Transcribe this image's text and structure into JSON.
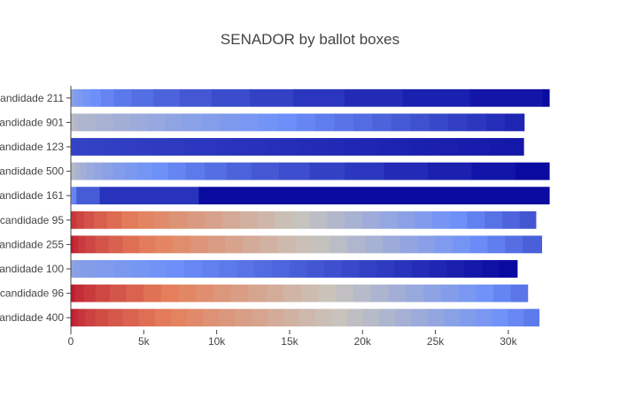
{
  "chart_data": {
    "type": "bar",
    "orientation": "horizontal",
    "stacked": true,
    "title": "SENADOR by ballot boxes",
    "xlabel": "",
    "ylabel": "",
    "xlim": [
      0,
      32800
    ],
    "x_ticks": [
      0,
      5000,
      10000,
      15000,
      20000,
      25000,
      30000
    ],
    "x_tick_labels": [
      "0",
      "5k",
      "10k",
      "15k",
      "20k",
      "25k",
      "30k"
    ],
    "grid": false,
    "legend": "none",
    "colorscale": "coolwarm",
    "color_low": "#b40426",
    "color_mid": "#c9c4bc",
    "color_high": "#0a0aa0",
    "categories": [
      "candidade 211",
      "candidade 901",
      "candidade 123",
      "candidade 500",
      "candidade 161",
      "candidade 95",
      "candidade 255",
      "candidade 100",
      "candidade 96",
      "candidade 400"
    ],
    "bars": [
      {
        "category": "candidade 211",
        "segment_values": [
          60,
          140,
          260,
          380,
          520,
          700,
          900,
          1200,
          1500,
          1800,
          2200,
          2600,
          3000,
          3500,
          4000,
          4600,
          5000,
          2800
        ],
        "shade_start": 0.3,
        "shade_end": 1.0
      },
      {
        "category": "candidade 901",
        "segment_values": [
          60,
          120,
          300,
          1200,
          1200,
          1200,
          1200,
          1200,
          1200,
          1300,
          1300,
          1300,
          1300,
          1300,
          1300,
          1300,
          1300,
          1300,
          1300,
          1300,
          1300,
          1300,
          1300,
          1300,
          1300,
          1300,
          1300
        ],
        "shade_start": 0.05,
        "shade_end": 0.9
      },
      {
        "category": "candidade 123",
        "segment_values": [
          80,
          160,
          1000,
          1100,
          1100,
          1100,
          1100,
          1100,
          1100,
          1100,
          1100,
          1100,
          1100,
          1100,
          1100,
          1100,
          1100,
          1100,
          1100,
          1100,
          1100,
          1100,
          1100,
          1100,
          1100,
          1100,
          1100,
          1100,
          1100,
          1200
        ],
        "shade_start": 0.78,
        "shade_end": 0.95
      },
      {
        "category": "candidade 500",
        "segment_values": [
          60,
          120,
          200,
          300,
          400,
          500,
          600,
          700,
          800,
          900,
          1000,
          1100,
          1200,
          1300,
          1500,
          1700,
          1900,
          2100,
          2400,
          2700,
          3000,
          3000,
          3000,
          4500
        ],
        "shade_start": 0.05,
        "shade_end": 1.0
      },
      {
        "category": "candidade 161",
        "segment_values": [
          80,
          300,
          1600,
          6800,
          24020
        ],
        "shade_start": 0.4,
        "shade_end": 1.0
      },
      {
        "category": "candidade 95",
        "segment_values": [
          80,
          300,
          500,
          700,
          900,
          1000,
          1100,
          1100,
          1100,
          1200,
          1200,
          1200,
          1200,
          1200,
          1200,
          1200,
          1200,
          1200,
          1200,
          1200,
          1200,
          1200,
          1200,
          1200,
          1200,
          1200,
          1200,
          1200,
          1200,
          1100
        ],
        "shade_start": -0.85,
        "shade_end": 0.72
      },
      {
        "category": "candidade 255",
        "segment_values": [
          60,
          120,
          300,
          500,
          700,
          900,
          1000,
          1100,
          1100,
          1200,
          1200,
          1200,
          1200,
          1200,
          1200,
          1200,
          1200,
          1200,
          1200,
          1200,
          1200,
          1200,
          1200,
          1200,
          1200,
          1200,
          1200,
          1200,
          1200,
          1200,
          1300
        ],
        "shade_start": -0.95,
        "shade_end": 0.68
      },
      {
        "category": "candidade 100",
        "segment_values": [
          60,
          120,
          500,
          1100,
          1200,
          1200,
          1200,
          1200,
          1200,
          1200,
          1200,
          1200,
          1200,
          1200,
          1200,
          1200,
          1200,
          1200,
          1200,
          1200,
          1200,
          1200,
          1200,
          1200,
          1200,
          1200,
          1200,
          1220
        ],
        "shade_start": 0.3,
        "shade_end": 1.0
      },
      {
        "category": "candidade 96",
        "segment_values": [
          80,
          200,
          600,
          800,
          1000,
          1100,
          1200,
          1200,
          1200,
          1200,
          1200,
          1200,
          1200,
          1200,
          1200,
          1200,
          1200,
          1200,
          1200,
          1200,
          1200,
          1200,
          1200,
          1200,
          1200,
          1200,
          1200,
          1200,
          1140
        ],
        "shade_start": -0.95,
        "shade_end": 0.6
      },
      {
        "category": "candidade 400",
        "segment_values": [
          60,
          100,
          300,
          500,
          700,
          900,
          1000,
          1100,
          1100,
          1100,
          1100,
          1100,
          1100,
          1100,
          1100,
          1100,
          1100,
          1100,
          1100,
          1100,
          1100,
          1100,
          1100,
          1100,
          1100,
          1100,
          1100,
          1100,
          1100,
          1100,
          1100,
          1100,
          1040
        ],
        "shade_start": -0.95,
        "shade_end": 0.58
      }
    ]
  }
}
